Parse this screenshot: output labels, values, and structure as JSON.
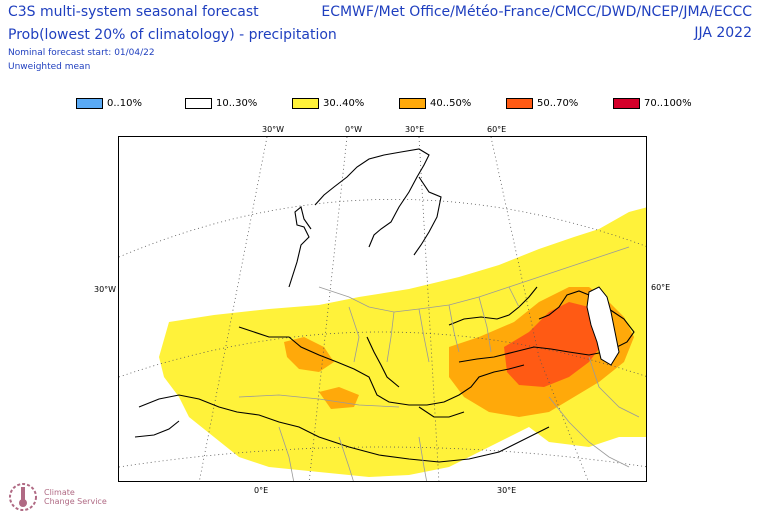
{
  "header": {
    "title": "C3S multi-system seasonal forecast",
    "subtitle": "Prob(lowest 20% of climatology) - precipitation",
    "start_line": "Nominal forecast start: 01/04/22",
    "mean_line": "Unweighted mean",
    "source": "ECMWF/Met Office/Météo-France/CMCC/DWD/NCEP/JMA/ECCC",
    "season": "JJA 2022"
  },
  "legend": [
    {
      "label": "0..10%",
      "color": "#5aaaf5"
    },
    {
      "label": "10..30%",
      "color": "#ffffff"
    },
    {
      "label": "30..40%",
      "color": "#fff23a"
    },
    {
      "label": "40..50%",
      "color": "#ffa90a"
    },
    {
      "label": "50..70%",
      "color": "#ff5a14"
    },
    {
      "label": "70..100%",
      "color": "#d4002a"
    }
  ],
  "graticule_labels": {
    "top": [
      "30°W",
      "0°W",
      "30°E",
      "60°E"
    ],
    "left": "30°W",
    "right": "60°E",
    "bottom": [
      "0°E",
      "30°E"
    ]
  },
  "logo": {
    "line1": "Climate",
    "line2": "Change Service"
  },
  "colors": {
    "header_text": "#1f3fbf",
    "coast": "#000000",
    "borders": "#9a9a9a",
    "graticule": "#555555"
  }
}
